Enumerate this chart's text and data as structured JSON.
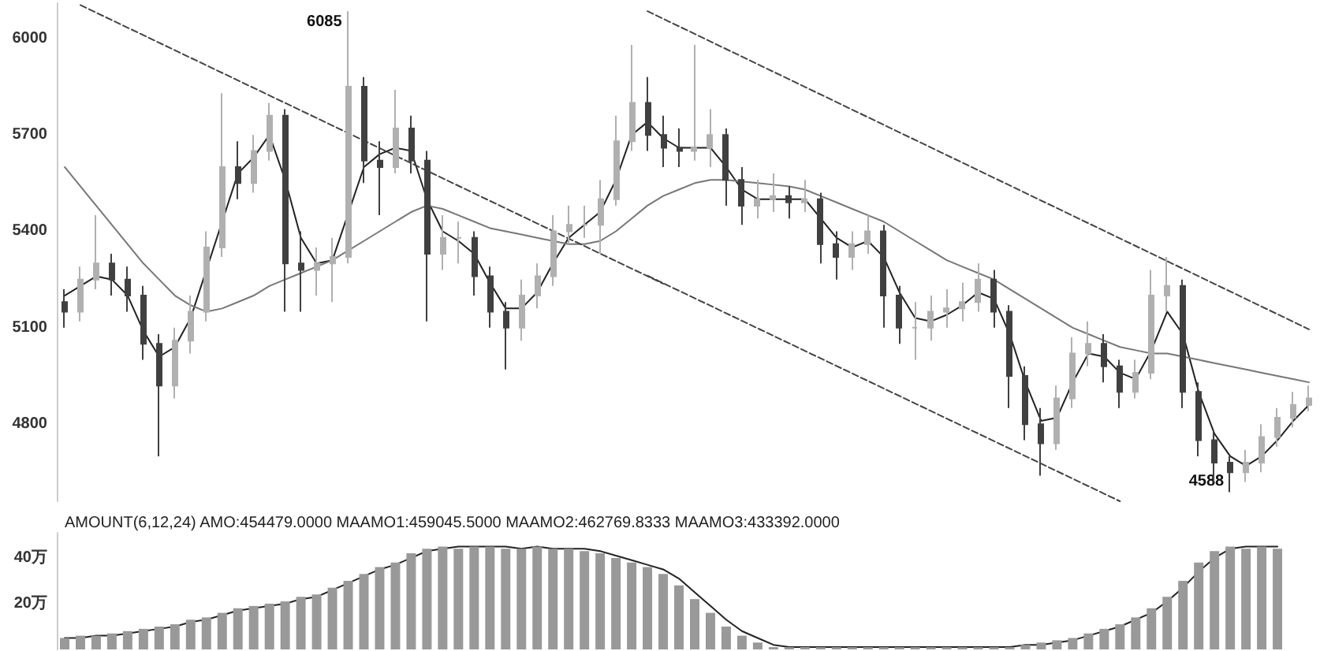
{
  "chart_data": [
    {
      "type": "candlestick",
      "tick_labels": "y",
      "grid": false,
      "marker": "none",
      "categories": [
        null,
        null,
        null,
        null,
        null,
        null,
        null,
        null,
        null,
        null,
        null,
        null,
        null,
        null,
        null,
        null,
        null,
        null,
        null,
        null,
        null,
        null,
        null,
        null,
        null,
        null,
        null,
        null,
        null,
        null,
        null,
        null,
        null,
        null,
        null,
        null,
        null,
        null,
        null,
        null,
        null,
        null,
        null,
        null,
        null,
        null,
        null,
        null,
        null,
        null,
        null,
        null,
        null,
        null,
        null,
        null,
        null,
        null,
        null,
        null,
        null,
        null,
        null,
        null,
        null,
        null,
        null,
        null,
        null,
        null,
        null,
        null,
        null,
        null,
        null,
        null,
        null,
        null,
        null,
        null
      ],
      "ylim": [
        4560,
        6110
      ],
      "yticks": [
        4800,
        5100,
        5400,
        5700,
        6000
      ],
      "ohlc": [
        [
          5180,
          5220,
          5100,
          5150
        ],
        [
          5150,
          5290,
          5120,
          5250
        ],
        [
          5250,
          5450,
          5220,
          5300
        ],
        [
          5300,
          5330,
          5200,
          5250
        ],
        [
          5250,
          5290,
          5150,
          5200
        ],
        [
          5200,
          5230,
          5000,
          5050
        ],
        [
          5050,
          5080,
          4700,
          4920
        ],
        [
          4920,
          5100,
          4880,
          5060
        ],
        [
          5060,
          5200,
          5020,
          5150
        ],
        [
          5150,
          5400,
          5120,
          5350
        ],
        [
          5350,
          5830,
          5320,
          5600
        ],
        [
          5600,
          5680,
          5500,
          5550
        ],
        [
          5550,
          5700,
          5520,
          5650
        ],
        [
          5650,
          5800,
          5620,
          5760
        ],
        [
          5760,
          5780,
          5150,
          5300
        ],
        [
          5300,
          5400,
          5150,
          5280
        ],
        [
          5280,
          5350,
          5200,
          5300
        ],
        [
          5300,
          5380,
          5180,
          5320
        ],
        [
          5320,
          6085,
          5300,
          5850
        ],
        [
          5850,
          5880,
          5550,
          5620
        ],
        [
          5620,
          5680,
          5450,
          5600
        ],
        [
          5600,
          5840,
          5580,
          5720
        ],
        [
          5720,
          5760,
          5580,
          5620
        ],
        [
          5620,
          5650,
          5120,
          5330
        ],
        [
          5330,
          5450,
          5280,
          5380
        ],
        [
          5380,
          5430,
          5300,
          5380
        ],
        [
          5380,
          5400,
          5200,
          5260
        ],
        [
          5260,
          5290,
          5100,
          5150
        ],
        [
          5150,
          5180,
          4970,
          5100
        ],
        [
          5100,
          5250,
          5060,
          5200
        ],
        [
          5200,
          5300,
          5160,
          5260
        ],
        [
          5260,
          5450,
          5230,
          5400
        ],
        [
          5400,
          5480,
          5360,
          5420
        ],
        [
          5420,
          5480,
          5380,
          5420
        ],
        [
          5420,
          5560,
          5330,
          5500
        ],
        [
          5500,
          5760,
          5480,
          5680
        ],
        [
          5680,
          5980,
          5650,
          5800
        ],
        [
          5800,
          5880,
          5650,
          5700
        ],
        [
          5700,
          5760,
          5600,
          5660
        ],
        [
          5660,
          5720,
          5600,
          5650
        ],
        [
          5650,
          5980,
          5620,
          5660
        ],
        [
          5660,
          5780,
          5600,
          5700
        ],
        [
          5700,
          5720,
          5480,
          5560
        ],
        [
          5560,
          5600,
          5420,
          5480
        ],
        [
          5480,
          5560,
          5440,
          5500
        ],
        [
          5500,
          5580,
          5460,
          5510
        ],
        [
          5510,
          5540,
          5440,
          5490
        ],
        [
          5490,
          5560,
          5460,
          5500
        ],
        [
          5500,
          5520,
          5300,
          5360
        ],
        [
          5360,
          5400,
          5250,
          5320
        ],
        [
          5320,
          5400,
          5280,
          5360
        ],
        [
          5360,
          5450,
          5330,
          5400
        ],
        [
          5400,
          5420,
          5100,
          5200
        ],
        [
          5200,
          5230,
          5050,
          5100
        ],
        [
          5100,
          5180,
          5000,
          5100
        ],
        [
          5100,
          5200,
          5060,
          5150
        ],
        [
          5150,
          5220,
          5100,
          5160
        ],
        [
          5160,
          5240,
          5120,
          5180
        ],
        [
          5180,
          5300,
          5150,
          5250
        ],
        [
          5250,
          5280,
          5100,
          5150
        ],
        [
          5150,
          5170,
          4850,
          4950
        ],
        [
          4950,
          4980,
          4750,
          4800
        ],
        [
          4800,
          4850,
          4640,
          4740
        ],
        [
          4740,
          4920,
          4720,
          4880
        ],
        [
          4880,
          5070,
          4850,
          5020
        ],
        [
          5020,
          5120,
          4980,
          5050
        ],
        [
          5050,
          5080,
          4930,
          4980
        ],
        [
          4980,
          5000,
          4850,
          4900
        ],
        [
          4900,
          5000,
          4880,
          4960
        ],
        [
          4960,
          5280,
          4940,
          5200
        ],
        [
          5200,
          5320,
          5150,
          5230
        ],
        [
          5230,
          5250,
          4850,
          4900
        ],
        [
          4900,
          4930,
          4700,
          4750
        ],
        [
          4750,
          4780,
          4620,
          4680
        ],
        [
          4680,
          4700,
          4588,
          4650
        ],
        [
          4650,
          4720,
          4620,
          4680
        ],
        [
          4680,
          4800,
          4650,
          4760
        ],
        [
          4760,
          4850,
          4730,
          4820
        ],
        [
          4820,
          4900,
          4790,
          4860
        ],
        [
          4860,
          4920,
          4840,
          4880
        ]
      ],
      "colors": [
        "#404040",
        "#b0b0b0",
        "#b0b0b0",
        "#404040",
        "#404040",
        "#404040",
        "#404040",
        "#b0b0b0",
        "#b0b0b0",
        "#b0b0b0",
        "#b0b0b0",
        "#404040",
        "#b0b0b0",
        "#b0b0b0",
        "#404040",
        "#404040",
        "#b0b0b0",
        "#b0b0b0",
        "#b0b0b0",
        "#404040",
        "#404040",
        "#b0b0b0",
        "#404040",
        "#404040",
        "#b0b0b0",
        "#b0b0b0",
        "#404040",
        "#404040",
        "#404040",
        "#b0b0b0",
        "#b0b0b0",
        "#b0b0b0",
        "#b0b0b0",
        "#b0b0b0",
        "#b0b0b0",
        "#b0b0b0",
        "#b0b0b0",
        "#404040",
        "#404040",
        "#404040",
        "#b0b0b0",
        "#b0b0b0",
        "#404040",
        "#404040",
        "#b0b0b0",
        "#b0b0b0",
        "#404040",
        "#b0b0b0",
        "#404040",
        "#404040",
        "#b0b0b0",
        "#b0b0b0",
        "#404040",
        "#404040",
        "#b0b0b0",
        "#b0b0b0",
        "#b0b0b0",
        "#b0b0b0",
        "#b0b0b0",
        "#404040",
        "#404040",
        "#404040",
        "#404040",
        "#b0b0b0",
        "#b0b0b0",
        "#b0b0b0",
        "#404040",
        "#404040",
        "#b0b0b0",
        "#b0b0b0",
        "#b0b0b0",
        "#404040",
        "#404040",
        "#404040",
        "#404040",
        "#b0b0b0",
        "#b0b0b0",
        "#b0b0b0",
        "#b0b0b0",
        "#b0b0b0"
      ],
      "series": [
        {
          "type": "line",
          "color": "#222222",
          "line_style": "solid",
          "values": [
            5200,
            5230,
            5260,
            5250,
            5200,
            5090,
            5010,
            5040,
            5130,
            null,
            null,
            5580,
            5630,
            5700,
            5560,
            5380,
            5300,
            5310,
            null,
            5600,
            5640,
            5660,
            5650,
            5500,
            5400,
            5370,
            5330,
            5240,
            5160,
            5160,
            5210,
            5300,
            5380,
            5420,
            5460,
            5560,
            5700,
            5740,
            5690,
            5660,
            5660,
            5660,
            5600,
            5530,
            5500,
            5500,
            5500,
            5500,
            5440,
            5380,
            5350,
            5370,
            5320,
            5210,
            5130,
            5120,
            5140,
            5170,
            5210,
            5190,
            5080,
            4930,
            4810,
            4820,
            4930,
            5020,
            5010,
            4960,
            4940,
            5030,
            5150,
            5080,
            4900,
            4770,
            4700,
            4670,
            4700,
            4750,
            4810,
            4860
          ]
        },
        {
          "type": "line",
          "color": "#777777",
          "line_style": "solid",
          "values": [
            5600,
            5540,
            5480,
            5420,
            5360,
            5300,
            5250,
            5200,
            5170,
            5150,
            5160,
            5180,
            5200,
            5230,
            5250,
            5270,
            5290,
            5310,
            5340,
            5370,
            5400,
            5430,
            5460,
            5480,
            5470,
            5450,
            5430,
            5410,
            5400,
            5390,
            5380,
            5370,
            5360,
            5360,
            5370,
            5400,
            5440,
            5480,
            5510,
            5530,
            5550,
            5560,
            5560,
            5555,
            5550,
            5545,
            5540,
            5530,
            5510,
            5490,
            5470,
            5450,
            5430,
            5400,
            5370,
            5340,
            5310,
            5290,
            5270,
            5250,
            5220,
            5190,
            5160,
            5130,
            5100,
            5080,
            5060,
            5040,
            5030,
            5020,
            5020,
            5010,
            5000,
            4990,
            4980,
            4970,
            4960,
            4950,
            4940,
            4930
          ]
        },
        {
          "type": "line",
          "color": "#444444",
          "line_style": "dashed",
          "values": [
            null,
            6104,
            null,
            null,
            null,
            null,
            null,
            null,
            null,
            null,
            null,
            null,
            null,
            null,
            null,
            null,
            null,
            null,
            null,
            null,
            null,
            null,
            null,
            null,
            null,
            null,
            null,
            null,
            null,
            null,
            null,
            null,
            null,
            null,
            null,
            null,
            null,
            null,
            5237,
            null,
            null,
            null,
            null,
            null,
            null,
            null,
            null,
            null,
            null,
            null,
            null,
            null,
            null,
            null,
            null,
            null,
            null,
            null,
            null,
            null,
            null,
            null,
            null,
            null,
            null,
            null,
            null,
            null,
            null,
            null,
            null,
            null,
            null,
            null,
            null,
            null,
            null,
            null,
            null,
            null
          ]
        },
        {
          "type": "line",
          "color": "#444444",
          "line_style": "dashed",
          "values": [
            null,
            null,
            null,
            null,
            null,
            null,
            null,
            null,
            null,
            null,
            null,
            null,
            null,
            null,
            null,
            null,
            null,
            null,
            null,
            null,
            null,
            null,
            null,
            null,
            null,
            null,
            null,
            null,
            null,
            null,
            null,
            null,
            null,
            null,
            null,
            null,
            null,
            5262,
            null,
            null,
            null,
            null,
            null,
            null,
            null,
            null,
            null,
            null,
            null,
            null,
            null,
            null,
            null,
            null,
            null,
            null,
            null,
            null,
            null,
            null,
            null,
            null,
            null,
            null,
            null,
            null,
            null,
            4560,
            null,
            null,
            null,
            null,
            null,
            null,
            null,
            null,
            null,
            null,
            null,
            null
          ]
        },
        {
          "type": "line",
          "color": "#444444",
          "line_style": "dashed",
          "values": [
            null,
            null,
            null,
            null,
            null,
            null,
            null,
            null,
            null,
            null,
            null,
            null,
            null,
            null,
            null,
            null,
            null,
            null,
            null,
            null,
            null,
            null,
            null,
            null,
            null,
            null,
            null,
            null,
            null,
            null,
            null,
            null,
            null,
            null,
            null,
            null,
            null,
            6085,
            null,
            null,
            null,
            null,
            null,
            null,
            null,
            null,
            null,
            null,
            null,
            null,
            null,
            null,
            null,
            null,
            null,
            null,
            null,
            null,
            null,
            null,
            null,
            null,
            null,
            null,
            null,
            null,
            null,
            null,
            null,
            null,
            null,
            null,
            null,
            null,
            null,
            null,
            null,
            null,
            null,
            5095
          ]
        }
      ],
      "annotations": [
        "6085",
        "4588"
      ]
    },
    {
      "type": "bar",
      "tick_labels": "y",
      "grid": false,
      "marker": "none",
      "title": "AMOUNT(6,12,24) AMO:454479.0000 MAAMO1:459045.5000 MAAMO2:462769.8333 MAAMO3:433392.0000",
      "categories": [
        null,
        null,
        null,
        null,
        null,
        null,
        null,
        null,
        null,
        null,
        null,
        null,
        null,
        null,
        null,
        null,
        null,
        null,
        null,
        null,
        null,
        null,
        null,
        null,
        null,
        null,
        null,
        null,
        null,
        null,
        null,
        null,
        null,
        null,
        null,
        null,
        null,
        null,
        null,
        null,
        null,
        null,
        null,
        null,
        null,
        null,
        null,
        null,
        null,
        null,
        null,
        null,
        null,
        null,
        null,
        null,
        null,
        null,
        null,
        null,
        null,
        null,
        null,
        null,
        null,
        null,
        null,
        null,
        null,
        null,
        null,
        null,
        null,
        null,
        null,
        null,
        null,
        null,
        null,
        null
      ],
      "ylim": [
        0,
        51
      ],
      "yticks": [
        {
          "value": 20,
          "label": "20万"
        },
        {
          "value": 40,
          "label": "40万"
        }
      ],
      "series": [
        {
          "color": "#999999",
          "values": [
            5,
            6,
            6,
            7,
            8,
            9,
            10,
            11,
            13,
            14,
            16,
            18,
            19,
            20,
            21,
            23,
            24,
            27,
            30,
            33,
            36,
            38,
            42,
            44,
            45,
            44,
            45,
            45,
            44,
            44,
            45,
            44,
            44,
            43,
            42,
            40,
            38,
            36,
            33,
            28,
            22,
            16,
            10,
            6,
            3,
            1,
            1,
            1,
            1,
            1,
            1,
            1,
            1,
            1,
            1,
            1,
            1,
            1,
            1,
            1,
            1,
            2,
            3,
            4,
            5,
            7,
            9,
            11,
            14,
            18,
            23,
            30,
            38,
            43,
            45,
            44,
            45,
            44,
            null,
            null
          ]
        },
        {
          "type": "line",
          "color": "#222222",
          "line_style": "solid",
          "values": [
            5,
            5,
            6,
            6,
            7,
            8,
            9,
            10,
            12,
            13,
            15,
            17,
            18,
            19,
            20,
            22,
            23,
            26,
            29,
            32,
            35,
            37,
            40,
            43,
            44,
            45,
            45,
            45,
            45,
            44,
            45,
            44,
            44,
            44,
            43,
            41,
            39,
            37,
            35,
            31,
            25,
            19,
            13,
            8,
            5,
            2,
            1,
            1,
            1,
            1,
            1,
            1,
            1,
            1,
            1,
            1,
            1,
            1,
            1,
            1,
            1,
            2,
            2,
            3,
            4,
            6,
            8,
            10,
            13,
            16,
            21,
            27,
            34,
            40,
            44,
            45,
            45,
            45,
            null,
            null
          ]
        }
      ]
    }
  ]
}
